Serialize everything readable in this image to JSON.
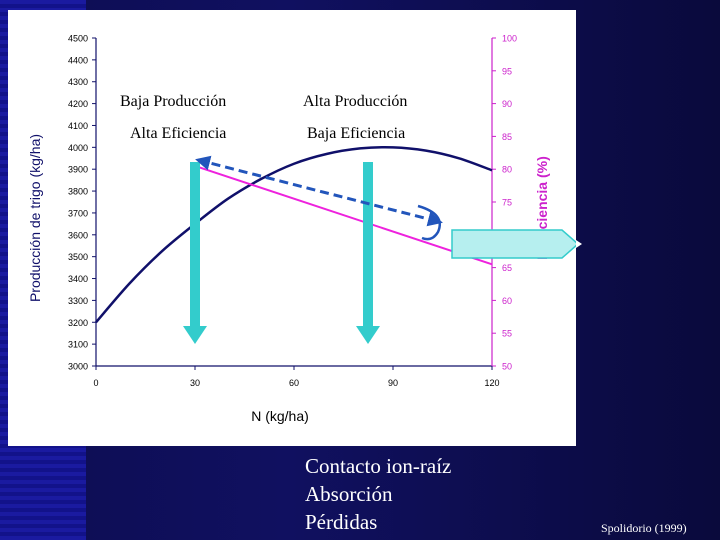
{
  "chart_data": {
    "type": "line",
    "xlabel": "N (kg/ha)",
    "ylabel": "Producción de trigo  (kg/ha)",
    "y2label": "N eficiencia (%)",
    "xlim": [
      0,
      120
    ],
    "ylim": [
      3000,
      4500
    ],
    "y2lim": [
      50,
      100
    ],
    "x_ticks": [
      "0",
      "30",
      "60",
      "90",
      "120"
    ],
    "y_ticks": [
      "3000",
      "3100",
      "3200",
      "3300",
      "3400",
      "3500",
      "3600",
      "3700",
      "3800",
      "3900",
      "4000",
      "4100",
      "4200",
      "4300",
      "4400",
      "4500"
    ],
    "y2_ticks": [
      "50",
      "55",
      "60",
      "65",
      "70",
      "75",
      "80",
      "85",
      "90",
      "95",
      "100"
    ],
    "series": [
      {
        "axis": "left",
        "color": "#10106a",
        "x": [
          0,
          10,
          20,
          30,
          40,
          50,
          60,
          70,
          80,
          90,
          100,
          110,
          120
        ],
        "y": [
          3200,
          3375,
          3525,
          3650,
          3765,
          3855,
          3925,
          3970,
          3995,
          4000,
          3985,
          3950,
          3895
        ]
      },
      {
        "axis": "right",
        "color": "#ee22dd",
        "x": [
          30,
          120
        ],
        "y": [
          80.5,
          65.5
        ]
      }
    ],
    "annotations": [
      {
        "text": "Baja Producción"
      },
      {
        "text": "Alta Producción"
      },
      {
        "text": "Alta Eficiencia"
      },
      {
        "text": "Baja Eficiencia"
      }
    ]
  },
  "notes": [
    "Contacto ion-raíz",
    "Absorción",
    "Pérdidas"
  ],
  "source": "Spolidorio (1999)",
  "colors": {
    "left_axis": "#10106a",
    "right_axis": "#cc22cc",
    "arrow_teal": "#33cccc",
    "arrow_dashed": "#2255bb"
  }
}
